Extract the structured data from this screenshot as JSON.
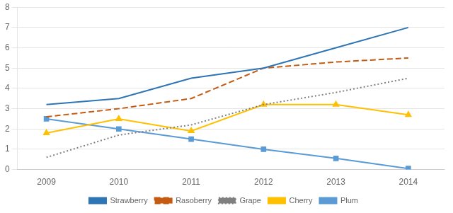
{
  "chart_data": {
    "type": "line",
    "x": [
      2009,
      2010,
      2011,
      2012,
      2013,
      2014
    ],
    "xlim": [
      2008.6,
      2014.5
    ],
    "xticks": [
      2009,
      2010,
      2011,
      2012,
      2013,
      2014
    ],
    "ylim": [
      0,
      8
    ],
    "yticks": [
      0,
      1,
      2,
      3,
      4,
      5,
      6,
      7,
      8
    ],
    "grid": "y",
    "legend": "bottom",
    "series": [
      {
        "name": "Strawberry",
        "color": "#2e75b6",
        "line_style": "solid",
        "marker": "none",
        "values": [
          3.2,
          3.5,
          4.5,
          5.0,
          6.0,
          7.0
        ]
      },
      {
        "name": "Rasoberry",
        "color": "#c55a11",
        "line_style": "dashed",
        "marker": "none",
        "values": [
          2.6,
          3.0,
          3.5,
          5.0,
          5.3,
          5.5
        ]
      },
      {
        "name": "Grape",
        "color": "#808080",
        "line_style": "dotted",
        "marker": "none",
        "values": [
          0.6,
          1.7,
          2.2,
          3.2,
          3.8,
          4.5
        ]
      },
      {
        "name": "Cherry",
        "color": "#ffc000",
        "line_style": "solid",
        "marker": "triangle",
        "values": [
          1.8,
          2.5,
          1.9,
          3.2,
          3.2,
          2.7
        ]
      },
      {
        "name": "Plum",
        "color": "#5b9bd5",
        "line_style": "solid",
        "marker": "square",
        "values": [
          2.5,
          2.0,
          1.5,
          1.0,
          0.55,
          0.05
        ]
      }
    ]
  }
}
